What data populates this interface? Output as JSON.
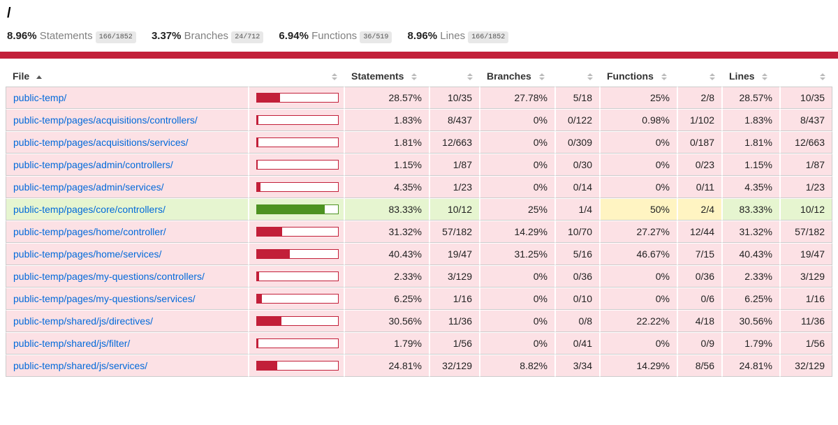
{
  "page": {
    "title": "/"
  },
  "summary": [
    {
      "pct": "8.96%",
      "label": "Statements",
      "fraction": "166/1852"
    },
    {
      "pct": "3.37%",
      "label": "Branches",
      "fraction": "24/712"
    },
    {
      "pct": "6.94%",
      "label": "Functions",
      "fraction": "36/519"
    },
    {
      "pct": "8.96%",
      "label": "Lines",
      "fraction": "166/1852"
    }
  ],
  "colors": {
    "banner": "#C21F39",
    "low_bg": "#FCE1E5",
    "medium_bg": "#FFF4C2",
    "high_bg": "#E6F5D0",
    "bar_fill_low": "#C21F39",
    "bar_fill_high": "#4D9221",
    "link": "#0069DA",
    "fraction_badge_bg": "#E8E8E8"
  },
  "table": {
    "sort": {
      "column": "File",
      "direction": "asc"
    },
    "headers": {
      "file": "File",
      "statements": "Statements",
      "branches": "Branches",
      "functions": "Functions",
      "lines": "Lines"
    },
    "rows": [
      {
        "file": "public-temp/",
        "file_level": "low",
        "bar": 28.57,
        "bar_level": "low",
        "statements": {
          "pct": "28.57%",
          "frac": "10/35",
          "level": "low"
        },
        "branches": {
          "pct": "27.78%",
          "frac": "5/18",
          "level": "low"
        },
        "functions": {
          "pct": "25%",
          "frac": "2/8",
          "level": "low"
        },
        "lines": {
          "pct": "28.57%",
          "frac": "10/35",
          "level": "low"
        }
      },
      {
        "file": "public-temp/pages/acquisitions/controllers/",
        "file_level": "low",
        "bar": 1.83,
        "bar_level": "low",
        "statements": {
          "pct": "1.83%",
          "frac": "8/437",
          "level": "low"
        },
        "branches": {
          "pct": "0%",
          "frac": "0/122",
          "level": "low"
        },
        "functions": {
          "pct": "0.98%",
          "frac": "1/102",
          "level": "low"
        },
        "lines": {
          "pct": "1.83%",
          "frac": "8/437",
          "level": "low"
        }
      },
      {
        "file": "public-temp/pages/acquisitions/services/",
        "file_level": "low",
        "bar": 1.81,
        "bar_level": "low",
        "statements": {
          "pct": "1.81%",
          "frac": "12/663",
          "level": "low"
        },
        "branches": {
          "pct": "0%",
          "frac": "0/309",
          "level": "low"
        },
        "functions": {
          "pct": "0%",
          "frac": "0/187",
          "level": "low"
        },
        "lines": {
          "pct": "1.81%",
          "frac": "12/663",
          "level": "low"
        }
      },
      {
        "file": "public-temp/pages/admin/controllers/",
        "file_level": "low",
        "bar": 1.15,
        "bar_level": "low",
        "statements": {
          "pct": "1.15%",
          "frac": "1/87",
          "level": "low"
        },
        "branches": {
          "pct": "0%",
          "frac": "0/30",
          "level": "low"
        },
        "functions": {
          "pct": "0%",
          "frac": "0/23",
          "level": "low"
        },
        "lines": {
          "pct": "1.15%",
          "frac": "1/87",
          "level": "low"
        }
      },
      {
        "file": "public-temp/pages/admin/services/",
        "file_level": "low",
        "bar": 4.35,
        "bar_level": "low",
        "statements": {
          "pct": "4.35%",
          "frac": "1/23",
          "level": "low"
        },
        "branches": {
          "pct": "0%",
          "frac": "0/14",
          "level": "low"
        },
        "functions": {
          "pct": "0%",
          "frac": "0/11",
          "level": "low"
        },
        "lines": {
          "pct": "4.35%",
          "frac": "1/23",
          "level": "low"
        }
      },
      {
        "file": "public-temp/pages/core/controllers/",
        "file_level": "high",
        "bar": 83.33,
        "bar_level": "high",
        "statements": {
          "pct": "83.33%",
          "frac": "10/12",
          "level": "high"
        },
        "branches": {
          "pct": "25%",
          "frac": "1/4",
          "level": "low"
        },
        "functions": {
          "pct": "50%",
          "frac": "2/4",
          "level": "medium"
        },
        "lines": {
          "pct": "83.33%",
          "frac": "10/12",
          "level": "high"
        }
      },
      {
        "file": "public-temp/pages/home/controller/",
        "file_level": "low",
        "bar": 31.32,
        "bar_level": "low",
        "statements": {
          "pct": "31.32%",
          "frac": "57/182",
          "level": "low"
        },
        "branches": {
          "pct": "14.29%",
          "frac": "10/70",
          "level": "low"
        },
        "functions": {
          "pct": "27.27%",
          "frac": "12/44",
          "level": "low"
        },
        "lines": {
          "pct": "31.32%",
          "frac": "57/182",
          "level": "low"
        }
      },
      {
        "file": "public-temp/pages/home/services/",
        "file_level": "low",
        "bar": 40.43,
        "bar_level": "low",
        "statements": {
          "pct": "40.43%",
          "frac": "19/47",
          "level": "low"
        },
        "branches": {
          "pct": "31.25%",
          "frac": "5/16",
          "level": "low"
        },
        "functions": {
          "pct": "46.67%",
          "frac": "7/15",
          "level": "low"
        },
        "lines": {
          "pct": "40.43%",
          "frac": "19/47",
          "level": "low"
        }
      },
      {
        "file": "public-temp/pages/my-questions/controllers/",
        "file_level": "low",
        "bar": 2.33,
        "bar_level": "low",
        "statements": {
          "pct": "2.33%",
          "frac": "3/129",
          "level": "low"
        },
        "branches": {
          "pct": "0%",
          "frac": "0/36",
          "level": "low"
        },
        "functions": {
          "pct": "0%",
          "frac": "0/36",
          "level": "low"
        },
        "lines": {
          "pct": "2.33%",
          "frac": "3/129",
          "level": "low"
        }
      },
      {
        "file": "public-temp/pages/my-questions/services/",
        "file_level": "low",
        "bar": 6.25,
        "bar_level": "low",
        "statements": {
          "pct": "6.25%",
          "frac": "1/16",
          "level": "low"
        },
        "branches": {
          "pct": "0%",
          "frac": "0/10",
          "level": "low"
        },
        "functions": {
          "pct": "0%",
          "frac": "0/6",
          "level": "low"
        },
        "lines": {
          "pct": "6.25%",
          "frac": "1/16",
          "level": "low"
        }
      },
      {
        "file": "public-temp/shared/js/directives/",
        "file_level": "low",
        "bar": 30.56,
        "bar_level": "low",
        "statements": {
          "pct": "30.56%",
          "frac": "11/36",
          "level": "low"
        },
        "branches": {
          "pct": "0%",
          "frac": "0/8",
          "level": "low"
        },
        "functions": {
          "pct": "22.22%",
          "frac": "4/18",
          "level": "low"
        },
        "lines": {
          "pct": "30.56%",
          "frac": "11/36",
          "level": "low"
        }
      },
      {
        "file": "public-temp/shared/js/filter/",
        "file_level": "low",
        "bar": 1.79,
        "bar_level": "low",
        "statements": {
          "pct": "1.79%",
          "frac": "1/56",
          "level": "low"
        },
        "branches": {
          "pct": "0%",
          "frac": "0/41",
          "level": "low"
        },
        "functions": {
          "pct": "0%",
          "frac": "0/9",
          "level": "low"
        },
        "lines": {
          "pct": "1.79%",
          "frac": "1/56",
          "level": "low"
        }
      },
      {
        "file": "public-temp/shared/js/services/",
        "file_level": "low",
        "bar": 24.81,
        "bar_level": "low",
        "statements": {
          "pct": "24.81%",
          "frac": "32/129",
          "level": "low"
        },
        "branches": {
          "pct": "8.82%",
          "frac": "3/34",
          "level": "low"
        },
        "functions": {
          "pct": "14.29%",
          "frac": "8/56",
          "level": "low"
        },
        "lines": {
          "pct": "24.81%",
          "frac": "32/129",
          "level": "low"
        }
      }
    ]
  }
}
